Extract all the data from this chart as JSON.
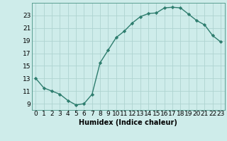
{
  "x": [
    0,
    1,
    2,
    3,
    4,
    5,
    6,
    7,
    8,
    9,
    10,
    11,
    12,
    13,
    14,
    15,
    16,
    17,
    18,
    19,
    20,
    21,
    22,
    23
  ],
  "y": [
    13,
    11.5,
    11,
    10.5,
    9.5,
    8.8,
    9.0,
    10.5,
    15.5,
    17.5,
    19.5,
    20.5,
    21.8,
    22.8,
    23.3,
    23.4,
    24.2,
    24.3,
    24.2,
    23.2,
    22.2,
    21.5,
    19.8,
    18.8
  ],
  "line_color": "#2e7d6e",
  "marker": "D",
  "marker_size": 2.2,
  "bg_color": "#ceecea",
  "grid_color": "#aed4d0",
  "xlabel": "Humidex (Indice chaleur)",
  "xlim": [
    -0.5,
    23.5
  ],
  "ylim": [
    8.0,
    25.0
  ],
  "yticks": [
    9,
    11,
    13,
    15,
    17,
    19,
    21,
    23
  ],
  "xticks": [
    0,
    1,
    2,
    3,
    4,
    5,
    6,
    7,
    8,
    9,
    10,
    11,
    12,
    13,
    14,
    15,
    16,
    17,
    18,
    19,
    20,
    21,
    22,
    23
  ],
  "label_fontsize": 7,
  "tick_fontsize": 6.5
}
